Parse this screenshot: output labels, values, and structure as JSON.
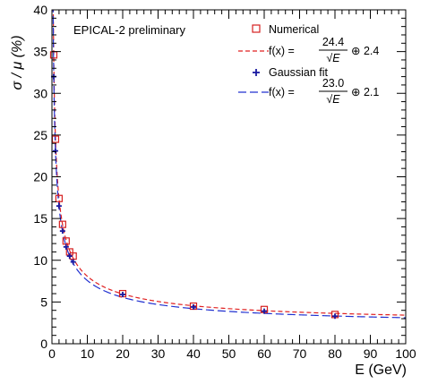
{
  "chart_data": {
    "type": "scatter",
    "annotation": "EPICAL-2 preliminary",
    "xlabel": "E (GeV)",
    "ylabel": "σ / μ (%)",
    "xlim": [
      0,
      100
    ],
    "ylim": [
      0,
      40
    ],
    "x_ticks": [
      0,
      10,
      20,
      30,
      40,
      50,
      60,
      70,
      80,
      90,
      100
    ],
    "y_ticks": [
      0,
      5,
      10,
      15,
      20,
      25,
      30,
      35,
      40
    ],
    "series": [
      {
        "name": "Numerical",
        "marker": "open-square",
        "color": "#d62020",
        "points": [
          {
            "x": 0.5,
            "y": 34.6
          },
          {
            "x": 1,
            "y": 24.5
          },
          {
            "x": 2,
            "y": 17.4
          },
          {
            "x": 3,
            "y": 14.3
          },
          {
            "x": 4,
            "y": 12.3
          },
          {
            "x": 5,
            "y": 11.0
          },
          {
            "x": 6,
            "y": 10.5
          },
          {
            "x": 20,
            "y": 6.0
          },
          {
            "x": 40,
            "y": 4.5
          },
          {
            "x": 60,
            "y": 4.1
          },
          {
            "x": 80,
            "y": 3.5
          }
        ]
      },
      {
        "name": "Gaussian fit",
        "marker": "plus",
        "color": "#1a1aa0",
        "points": [
          {
            "x": 0.5,
            "y": 32.0
          },
          {
            "x": 1,
            "y": 23.1
          },
          {
            "x": 2,
            "y": 16.5
          },
          {
            "x": 3,
            "y": 13.5
          },
          {
            "x": 4,
            "y": 11.6
          },
          {
            "x": 5,
            "y": 10.5
          },
          {
            "x": 6,
            "y": 9.8
          },
          {
            "x": 20,
            "y": 5.9
          },
          {
            "x": 40,
            "y": 4.4
          },
          {
            "x": 60,
            "y": 3.9
          },
          {
            "x": 80,
            "y": 3.3
          }
        ]
      }
    ],
    "fits": [
      {
        "label_prefix": "f(x) =",
        "numerator": "24.4",
        "denominator": "√E",
        "suffix": "⊕ 2.4",
        "a": 24.4,
        "b": 2.4,
        "color": "#e02020",
        "dash": "short"
      },
      {
        "label_prefix": "f(x) =",
        "numerator": "23.0",
        "denominator": "√E",
        "suffix": "⊕ 2.1",
        "a": 23.0,
        "b": 2.1,
        "color": "#2030d0",
        "dash": "long"
      }
    ],
    "legend_position": "top-right",
    "grid": false
  }
}
